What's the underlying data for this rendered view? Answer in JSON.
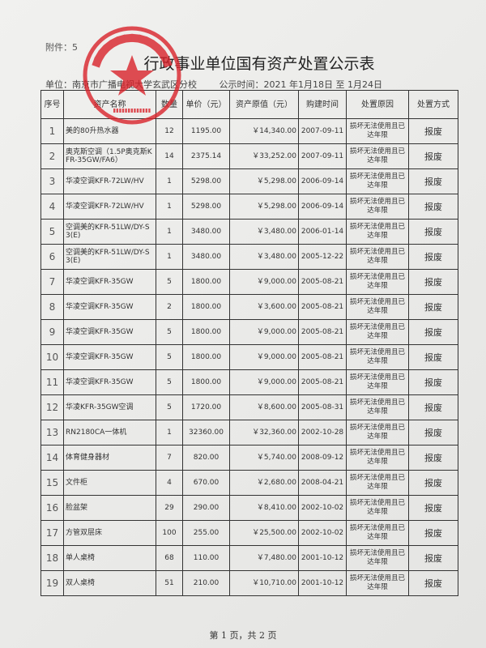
{
  "attachment": "附件：5",
  "title": "行政事业单位国有资产处置公示表",
  "unit": "单位：南京市广播电视大学玄武区分校",
  "notice_time": "公示时间：2021 年1月18日 至 1月24日",
  "stamp_text": "南京市广播电视大学玄武区分校 3201021011196",
  "columns": [
    "序号",
    "资产名称",
    "数量",
    "单价（元）",
    "资产原值（元）",
    "购建时间",
    "处置原因",
    "处置方式"
  ],
  "rows": [
    [
      "1",
      "美的80升热水器",
      "12",
      "1195.00",
      "￥14,340.00",
      "2007-09-11",
      "损坏无法使用且已达年限",
      "报废"
    ],
    [
      "2",
      "奥克斯空调（1.5P奥克斯KFR-35GW/FA6）",
      "14",
      "2375.14",
      "￥33,252.00",
      "2007-09-11",
      "损坏无法使用且已达年限",
      "报废"
    ],
    [
      "3",
      "华凌空调KFR-72LW/HV",
      "1",
      "5298.00",
      "￥5,298.00",
      "2006-09-14",
      "损坏无法使用且已达年限",
      "报废"
    ],
    [
      "4",
      "华凌空调KFR-72LW/HV",
      "1",
      "5298.00",
      "￥5,298.00",
      "2006-09-14",
      "损坏无法使用且已达年限",
      "报废"
    ],
    [
      "5",
      "空调美的KFR-51LW/DY-S3(E)",
      "1",
      "3480.00",
      "￥3,480.00",
      "2006-01-14",
      "损坏无法使用且已达年限",
      "报废"
    ],
    [
      "6",
      "空调美的KFR-51LW/DY-S3(E)",
      "1",
      "3480.00",
      "￥3,480.00",
      "2005-12-22",
      "损坏无法使用且已达年限",
      "报废"
    ],
    [
      "7",
      "华凌空调KFR-35GW",
      "5",
      "1800.00",
      "￥9,000.00",
      "2005-08-21",
      "损坏无法使用且已达年限",
      "报废"
    ],
    [
      "8",
      "华凌空调KFR-35GW",
      "2",
      "1800.00",
      "￥3,600.00",
      "2005-08-21",
      "损坏无法使用且已达年限",
      "报废"
    ],
    [
      "9",
      "华凌空调KFR-35GW",
      "5",
      "1800.00",
      "￥9,000.00",
      "2005-08-21",
      "损坏无法使用且已达年限",
      "报废"
    ],
    [
      "10",
      "华凌空调KFR-35GW",
      "5",
      "1800.00",
      "￥9,000.00",
      "2005-08-21",
      "损坏无法使用且已达年限",
      "报废"
    ],
    [
      "11",
      "华凌空调KFR-35GW",
      "5",
      "1800.00",
      "￥9,000.00",
      "2005-08-21",
      "损坏无法使用且已达年限",
      "报废"
    ],
    [
      "12",
      "华凌KFR-35GW空调",
      "5",
      "1720.00",
      "￥8,600.00",
      "2005-08-31",
      "损坏无法使用且已达年限",
      "报废"
    ],
    [
      "13",
      "RN2180CA一体机",
      "1",
      "32360.00",
      "￥32,360.00",
      "2002-10-28",
      "损坏无法使用且已达年限",
      "报废"
    ],
    [
      "14",
      "体育健身器材",
      "7",
      "820.00",
      "￥5,740.00",
      "2008-09-12",
      "损坏无法使用且已达年限",
      "报废"
    ],
    [
      "15",
      "文件柜",
      "4",
      "670.00",
      "￥2,680.00",
      "2008-04-21",
      "损坏无法使用且已达年限",
      "报废"
    ],
    [
      "16",
      "脸盆架",
      "29",
      "290.00",
      "￥8,410.00",
      "2002-10-02",
      "损坏无法使用且已达年限",
      "报废"
    ],
    [
      "17",
      "方管双层床",
      "100",
      "255.00",
      "￥25,500.00",
      "2002-10-02",
      "损坏无法使用且已达年限",
      "报废"
    ],
    [
      "18",
      "单人桌椅",
      "68",
      "110.00",
      "￥7,480.00",
      "2001-10-12",
      "损坏无法使用且已达年限",
      "报废"
    ],
    [
      "19",
      "双人桌椅",
      "51",
      "210.00",
      "￥10,710.00",
      "2001-10-12",
      "损坏无法使用且已达年限",
      "报废"
    ]
  ],
  "footer": "第 1 页，共 2 页",
  "colors": {
    "stamp": "#d9232b",
    "ink": "#333333"
  }
}
